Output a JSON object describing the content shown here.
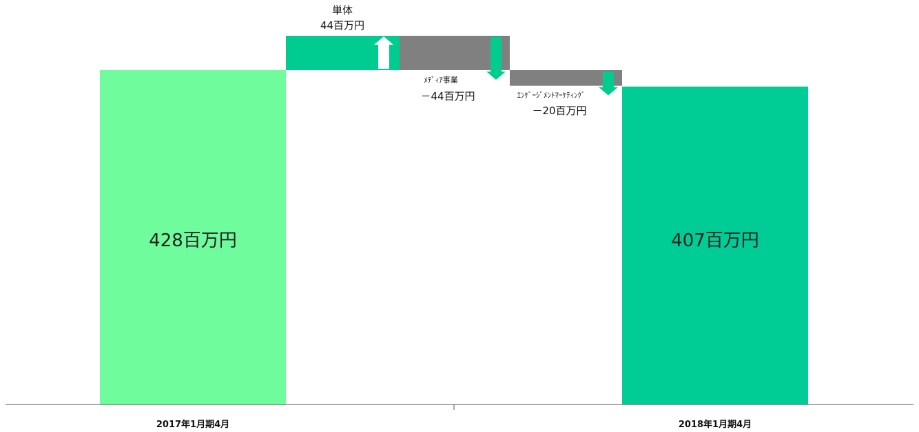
{
  "colors": {
    "start_bar": "#6ffc9c",
    "end_bar": "#00cd95",
    "increase": "#00cc90",
    "decrease": "#808080",
    "arrow_down": "#00cc90",
    "arrow_up": "#ffffff",
    "axis": "#555555"
  },
  "chart_data": {
    "type": "bar",
    "subtype": "waterfall",
    "unit": "百万円",
    "categories": [
      "2017年1月期4月",
      "単体",
      "ﾒﾃﾞｨｱ事業",
      "ｴﾝｹﾞｰｼﾞﾒﾝﾄﾏｰｹﾃｨﾝｸﾞ",
      "2018年1月期4月"
    ],
    "x_tick_labels": [
      "2017年1月期4月",
      "2018年1月期4月"
    ],
    "steps": [
      {
        "kind": "total",
        "value": 428,
        "label": "428百万円"
      },
      {
        "kind": "delta",
        "value": 44,
        "name": "単体",
        "value_label": "44百万円",
        "direction": "up"
      },
      {
        "kind": "delta",
        "value": -44,
        "name": "ﾒﾃﾞｨｱ事業",
        "value_label": "－44百万円",
        "direction": "down"
      },
      {
        "kind": "delta",
        "value": -20,
        "name": "ｴﾝｹﾞｰｼﾞﾒﾝﾄﾏｰｹﾃｨﾝｸﾞ",
        "value_label": "－20百万円",
        "direction": "down"
      },
      {
        "kind": "total",
        "value": 407,
        "label": "407百万円"
      }
    ],
    "ylim": [
      0,
      472
    ],
    "grid": false,
    "legend": "none"
  }
}
